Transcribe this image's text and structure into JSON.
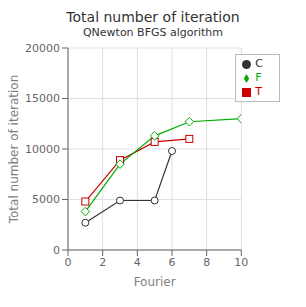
{
  "chart_data": {
    "type": "line",
    "title": "Total number of iteration",
    "subtitle": "QNewton BFGS algorithm",
    "xlabel": "Fourier",
    "ylabel": "Total number of iteration",
    "xlim": [
      0,
      10
    ],
    "ylim": [
      0,
      20000
    ],
    "xticks": [
      0,
      2,
      4,
      6,
      8,
      10
    ],
    "yticks": [
      0,
      5000,
      10000,
      15000,
      20000
    ],
    "grid": true,
    "legend": "upper right",
    "series": [
      {
        "name": "C",
        "color": "#333333",
        "marker": "circle",
        "x": [
          1,
          3,
          5,
          6
        ],
        "values": [
          2700,
          4900,
          4900,
          9800
        ]
      },
      {
        "name": "T",
        "color": "#cc0000",
        "marker": "square",
        "x": [
          1,
          3,
          5,
          7
        ],
        "values": [
          4800,
          8900,
          10700,
          11000
        ]
      },
      {
        "name": "F",
        "color": "#00aa00",
        "marker": "diamond",
        "x": [
          1,
          3,
          5,
          7,
          10
        ],
        "values": [
          3800,
          8500,
          11300,
          12700,
          13000
        ]
      }
    ]
  }
}
